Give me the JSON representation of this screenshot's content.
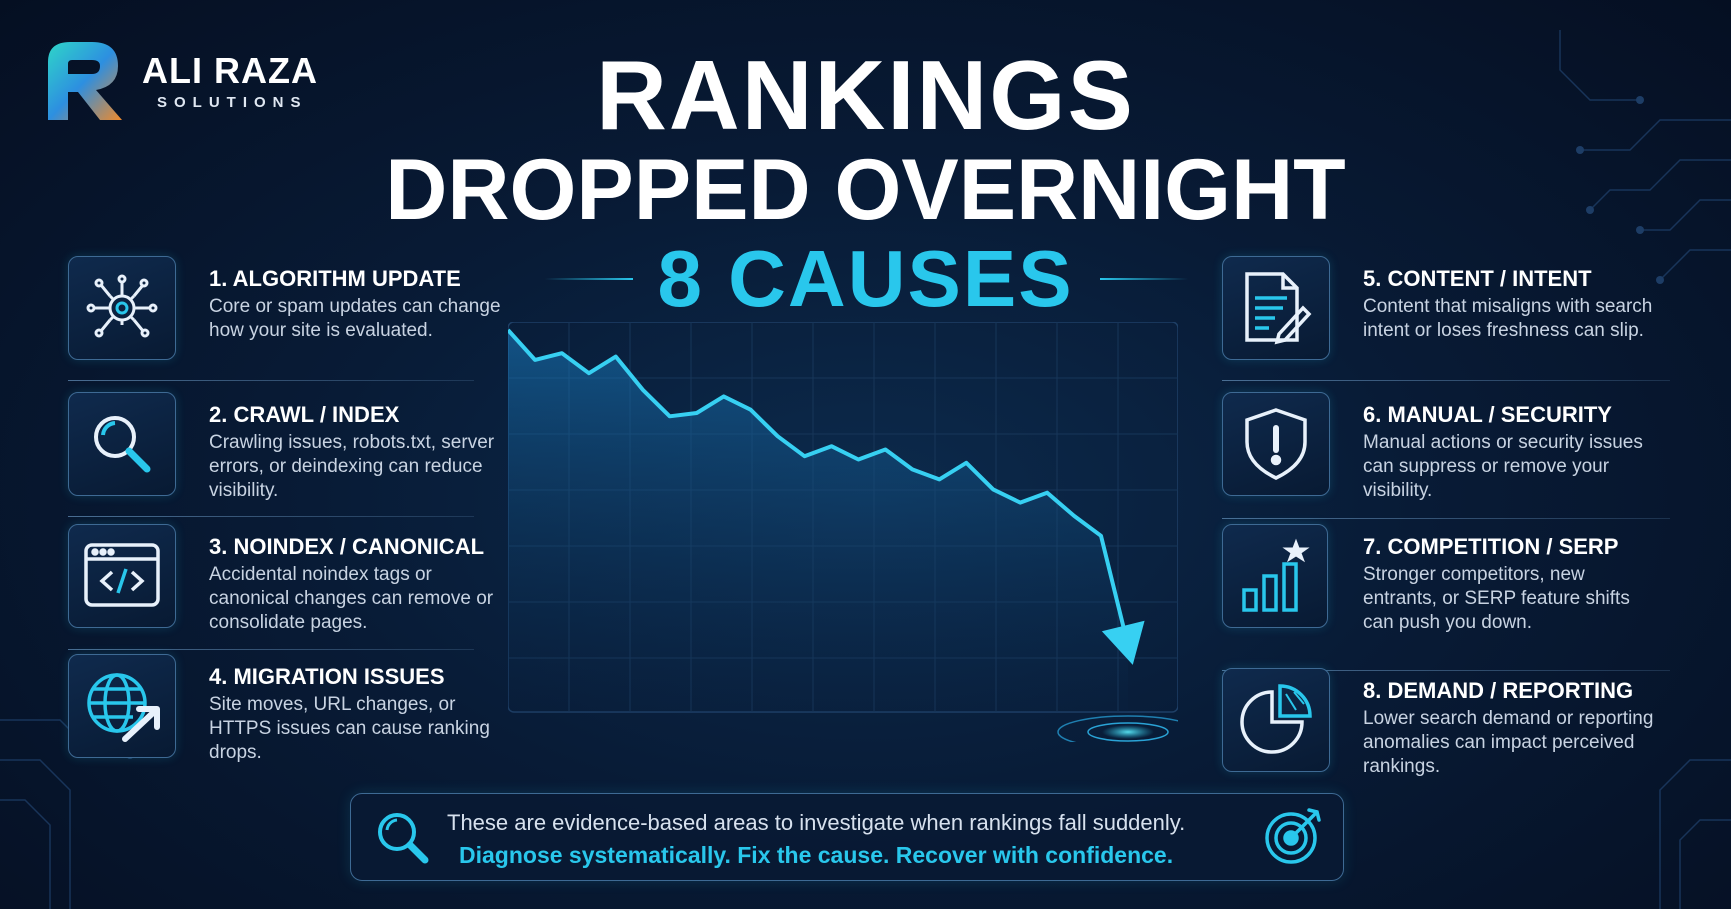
{
  "brand": {
    "name": "ALI RAZA",
    "tagline": "SOLUTIONS"
  },
  "title": {
    "line1": "RANKINGS",
    "line2": "DROPPED OVERNIGHT",
    "line3": "8 CAUSES"
  },
  "colors": {
    "accent": "#29c7ec",
    "background": "#06132a",
    "text": "#ffffff",
    "muted": "#c8d3e2"
  },
  "trend_chart": {
    "direction": "downward",
    "points": [
      100,
      91,
      93,
      87,
      92,
      82,
      74,
      75,
      80,
      76,
      68,
      62,
      65,
      61,
      64,
      58,
      55,
      60,
      52,
      48,
      51,
      44,
      38,
      5
    ]
  },
  "causes_left": [
    {
      "title": "1. ALGORITHM UPDATE",
      "description": "Core or spam updates can change how your site is evaluated.",
      "icon": "algorithm-gear-icon"
    },
    {
      "title": "2. CRAWL / INDEX",
      "description": "Crawling issues, robots.txt, server errors, or deindexing can reduce visibility.",
      "icon": "magnifier-icon"
    },
    {
      "title": "3. NOINDEX / CANONICAL",
      "description": "Accidental noindex tags or canonical changes can remove or consolidate pages.",
      "icon": "code-window-icon"
    },
    {
      "title": "4. MIGRATION ISSUES",
      "description": "Site moves, URL changes, or HTTPS issues can cause ranking drops.",
      "icon": "globe-arrow-icon"
    }
  ],
  "causes_right": [
    {
      "title": "5. CONTENT / INTENT",
      "description": "Content that misaligns with search intent or loses freshness can slip.",
      "icon": "document-pen-icon"
    },
    {
      "title": "6. MANUAL / SECURITY",
      "description": "Manual actions or security issues can suppress or remove your visibility.",
      "icon": "shield-alert-icon"
    },
    {
      "title": "7. COMPETITION / SERP",
      "description": "Stronger competitors, new entrants, or SERP feature shifts can push you down.",
      "icon": "bar-star-icon"
    },
    {
      "title": "8. DEMAND / REPORTING",
      "description": "Lower search demand or reporting anomalies can impact perceived rankings.",
      "icon": "pie-chart-icon"
    }
  ],
  "footer": {
    "line1": "These are evidence-based areas to investigate when rankings fall suddenly.",
    "line2": "Diagnose systematically. Fix the cause. Recover with confidence.",
    "icon_left": "search-icon",
    "icon_right": "target-icon"
  }
}
